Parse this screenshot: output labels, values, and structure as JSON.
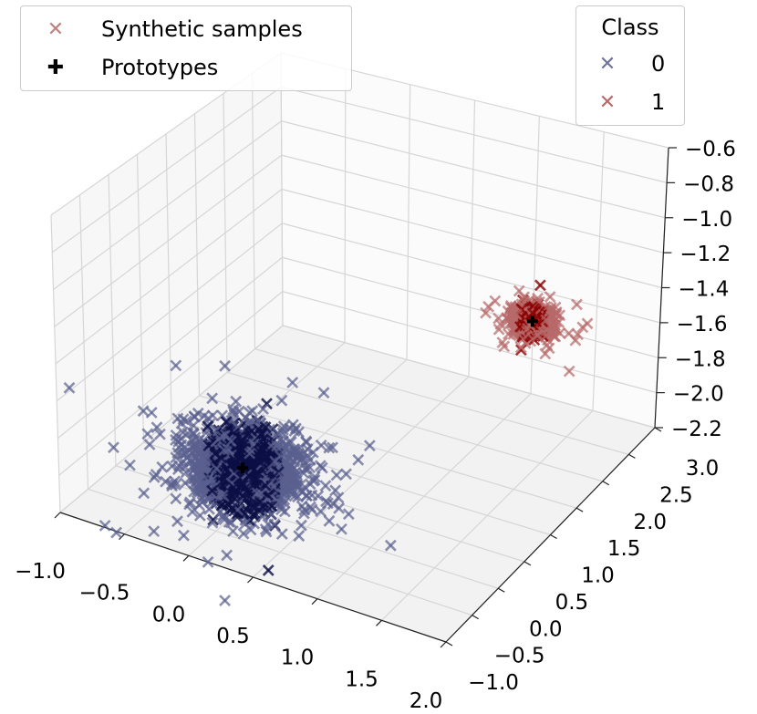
{
  "chart_data": {
    "type": "scatter",
    "projection": "3d",
    "x_ticks": [
      "−1.0",
      "−0.5",
      "0.0",
      "0.5",
      "1.0",
      "1.5",
      "2.0"
    ],
    "y_ticks": [
      "−1.0",
      "−0.5",
      "0.0",
      "0.5",
      "1.0",
      "1.5",
      "2.0",
      "2.5",
      "3.0"
    ],
    "z_ticks": [
      "−2.2",
      "−2.0",
      "−1.8",
      "−1.6",
      "−1.4",
      "−1.2",
      "−1.0",
      "−0.8",
      "−0.6"
    ],
    "xlim": [
      -1.0,
      2.0
    ],
    "ylim": [
      -1.0,
      3.0
    ],
    "zlim": [
      -2.2,
      -0.6
    ],
    "grid": true,
    "series": [
      {
        "name": "0",
        "color": "#5a5f8f",
        "core_color": "#0b0f45",
        "marker": "x",
        "center": [
          0.0,
          0.0,
          -2.0
        ],
        "spread": [
          0.2,
          0.2,
          0.09
        ],
        "approx_points": 1400
      },
      {
        "name": "1",
        "color": "#b86a6a",
        "core_color": "#8b0000",
        "marker": "x",
        "center": [
          1.35,
          2.15,
          -1.5
        ],
        "spread": [
          0.07,
          0.07,
          0.03
        ],
        "approx_points": 900
      }
    ],
    "prototypes": [
      {
        "class": "0",
        "x": 0.0,
        "y": 0.0,
        "z": -2.0
      },
      {
        "class": "1",
        "x": 1.35,
        "y": 2.15,
        "z": -1.5
      }
    ],
    "legend_samples": {
      "placement": "upper-left",
      "entries": [
        {
          "label": "Synthetic samples",
          "marker": "x",
          "color": "#c08080"
        },
        {
          "label": "Prototypes",
          "marker": "plus",
          "color": "#000000"
        }
      ]
    },
    "legend_class": {
      "placement": "upper-right",
      "title": "Class",
      "entries": [
        {
          "label": "0",
          "color": "#6f7299"
        },
        {
          "label": "1",
          "color": "#b86a6a"
        }
      ]
    }
  }
}
